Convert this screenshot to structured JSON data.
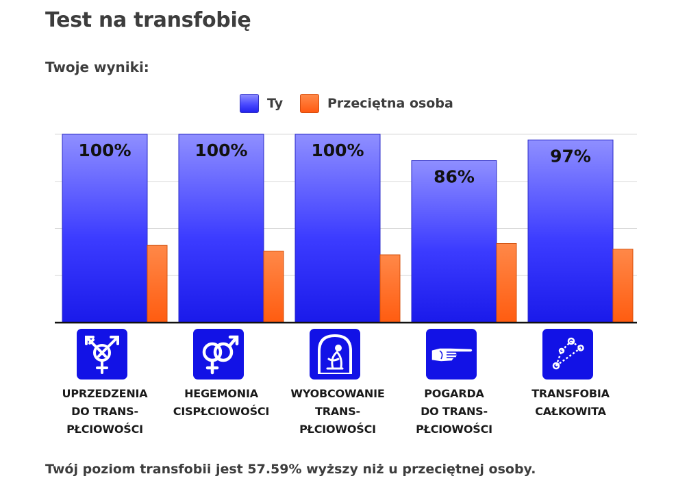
{
  "page": {
    "title": "Test na transfobię",
    "results_heading": "Twoje wyniki:",
    "summary": "Twój poziom transfobii jest 57.59% wyższy niż u przeciętnej osoby."
  },
  "legend": [
    {
      "label": "Ty",
      "color": "#3a3aff"
    },
    {
      "label": "Przeciętna osoba",
      "color": "#ff6a1f"
    }
  ],
  "categories": [
    {
      "label": "UPRZEDZENIA\nDO TRANS-\nPŁCIOWOŚCI",
      "icon": "transgender-symbol-icon"
    },
    {
      "label": "HEGEMONIA\nCISPŁCIOWOŚCI",
      "icon": "interlocked-gender-symbols-icon"
    },
    {
      "label": "WYOBCOWANIE\nTRANS-\nPŁCIOWOŚCI",
      "icon": "isolated-person-icon"
    },
    {
      "label": "POGARDA\nDO TRANS-\nPŁCIOWOŚCI",
      "icon": "pointing-hand-icon"
    },
    {
      "label": "TRANSFOBIA\nCAŁKOWITA",
      "icon": "constellation-icon"
    }
  ],
  "chart_data": {
    "type": "bar",
    "categories": [
      "UPRZEDZENIA DO TRANS-PŁCIOWOŚCI",
      "HEGEMONIA CISPŁCIOWOŚCI",
      "WYOBCOWANIE TRANS-PŁCIOWOŚCI",
      "POGARDA DO TRANS-PŁCIOWOŚCI",
      "TRANSFOBIA CAŁKOWITA"
    ],
    "series": [
      {
        "name": "Ty",
        "values": [
          100,
          100,
          100,
          86,
          97
        ],
        "labels": [
          "100%",
          "100%",
          "100%",
          "86%",
          "97%"
        ],
        "color": "#3a3aff"
      },
      {
        "name": "Przeciętna osoba",
        "values": [
          41,
          38,
          36,
          42,
          39
        ],
        "color": "#ff6a1f"
      }
    ],
    "ylim": [
      0,
      100
    ],
    "grid": true,
    "legend_position": "top"
  }
}
